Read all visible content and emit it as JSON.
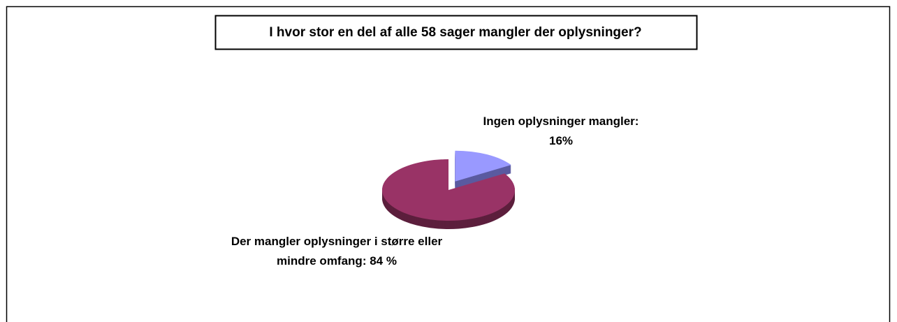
{
  "chart_data": {
    "type": "pie",
    "title": "I hvor stor en del af alle 58 sager mangler der oplysninger?",
    "values": [
      16,
      84
    ],
    "value_labels": [
      "Ingen oplysninger mangler: 16%",
      "Der mangler oplysninger i større eller mindre omfang: 84 %"
    ],
    "colors": [
      "#9999ff",
      "#993366"
    ],
    "side_colors": [
      "#5a5aa0",
      "#5c1f3d"
    ]
  }
}
